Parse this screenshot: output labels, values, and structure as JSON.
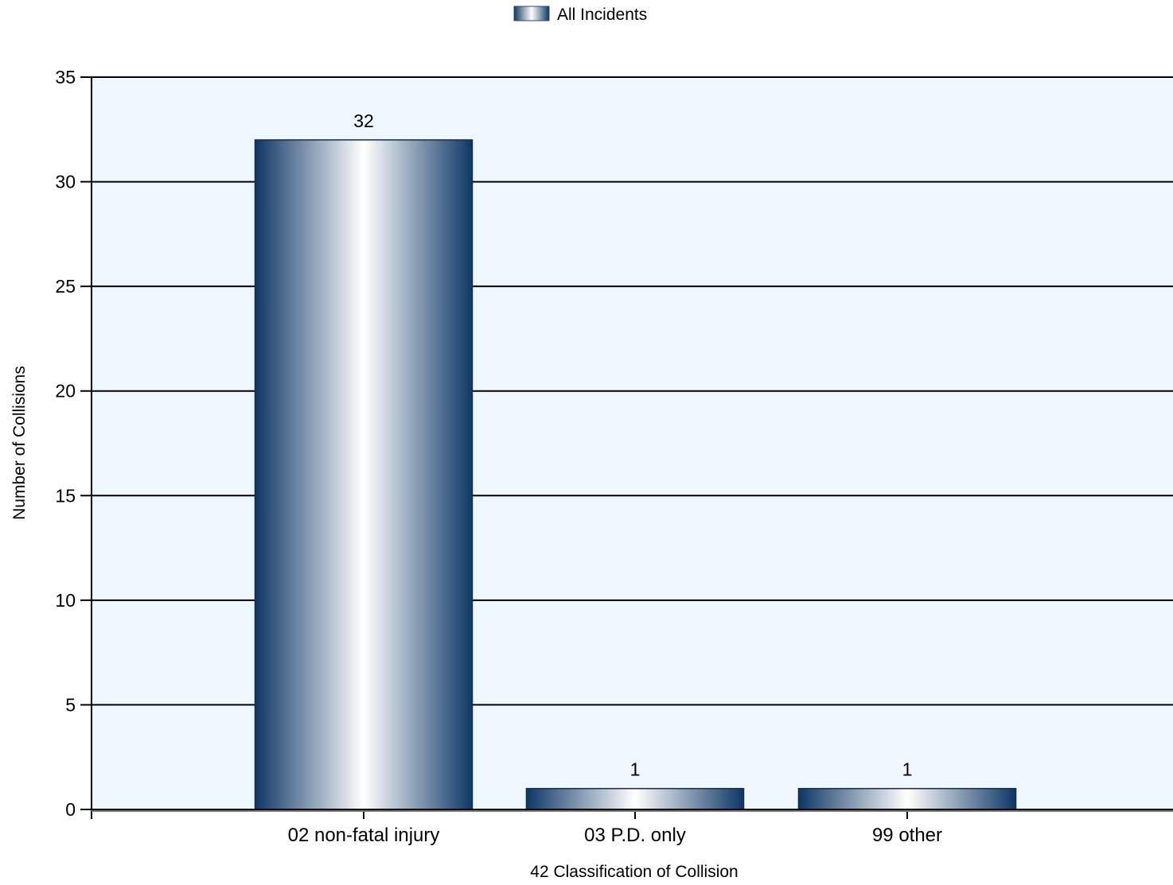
{
  "chart_data": {
    "type": "bar",
    "title": "",
    "xlabel": "42 Classification of Collision",
    "ylabel": "Number of Collisions",
    "categories": [
      "02 non-fatal injury",
      "03 P.D. only",
      "99 other"
    ],
    "series": [
      {
        "name": "All Incidents",
        "values": [
          32,
          1,
          1
        ],
        "data_labels": [
          "32",
          "1",
          "1"
        ]
      }
    ],
    "ylim": [
      0,
      35
    ],
    "yticks": [
      0,
      5,
      10,
      15,
      20,
      25,
      30,
      35
    ],
    "ytick_labels": [
      "0",
      "5",
      "10",
      "15",
      "20",
      "25",
      "30",
      "35"
    ],
    "grid": "horizontal",
    "legend_position": "top-center",
    "colors": {
      "plot_background": "#eef6fe",
      "bar_dark": "#0e3766",
      "bar_light": "#ffffff",
      "grid": "#000000",
      "axis": "#000000"
    }
  }
}
